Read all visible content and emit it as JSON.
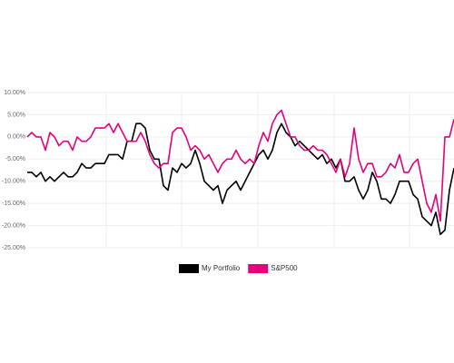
{
  "chart_data": {
    "type": "line",
    "ylim": [
      -25,
      10
    ],
    "yticks": [
      {
        "value": 10,
        "label": "10.00%"
      },
      {
        "value": 5,
        "label": "5.00%"
      },
      {
        "value": 0,
        "label": "0.00%"
      },
      {
        "value": -5,
        "label": "-5.00%"
      },
      {
        "value": -10,
        "label": "-10.00%"
      },
      {
        "value": -15,
        "label": "-15.00%"
      },
      {
        "value": -20,
        "label": "-20.00%"
      },
      {
        "value": -25,
        "label": "-25.00%"
      }
    ],
    "grid": true,
    "legend": "bottom",
    "series": [
      {
        "name": "My Portfolio",
        "color": "#000000",
        "values": [
          -8,
          -8,
          -9,
          -8,
          -10,
          -9,
          -10,
          -9,
          -8,
          -9,
          -9,
          -8,
          -6,
          -7,
          -7,
          -6,
          -6,
          -6,
          -4,
          -4,
          -4,
          -5,
          -1,
          -1,
          3,
          3,
          2,
          -3,
          -5,
          -5,
          -11,
          -12,
          -7,
          -8,
          -6,
          -7,
          -6,
          -3,
          -6,
          -10,
          -11,
          -12,
          -11,
          -15,
          -12,
          -11,
          -10,
          -12,
          -10,
          -8,
          -6,
          -4,
          -3,
          -5,
          -3,
          1,
          3,
          1,
          0,
          -2,
          -1,
          -2,
          -3,
          -4,
          -5,
          -4,
          -6,
          -5,
          -7,
          -5,
          -10,
          -10,
          -9,
          -12,
          -14,
          -12,
          -8,
          -10,
          -14,
          -14,
          -15,
          -13,
          -10,
          -10,
          -10,
          -13,
          -14,
          -18,
          -19,
          -20,
          -17,
          -22,
          -21,
          -12,
          -7
        ]
      },
      {
        "name": "S&P500",
        "color": "#e6007e",
        "values": [
          0,
          1,
          0,
          0,
          -3,
          1,
          0,
          -2,
          -1,
          -1,
          -3,
          0,
          -1,
          -1,
          0,
          2,
          2,
          2,
          3,
          1,
          3,
          1,
          -1,
          -1,
          -1,
          1,
          -1,
          -4,
          -6,
          -7,
          -6,
          -6,
          1,
          2,
          2,
          0,
          -3,
          -2,
          -3,
          -5,
          -4,
          -6,
          -8,
          -6,
          -5,
          -5,
          -3,
          -5,
          -6,
          -5,
          -6,
          -2,
          1,
          -1,
          3,
          5,
          6,
          3,
          0,
          0,
          -2,
          -3,
          -3,
          -2,
          -3,
          -3,
          -4,
          -6,
          -8,
          -5,
          -9,
          -6,
          2,
          -5,
          -8,
          -6,
          -6,
          -9,
          -9,
          -8,
          -6,
          -7,
          -4,
          -8,
          -8,
          -6,
          -5,
          -10,
          -15,
          -17,
          -13,
          -19,
          0,
          0,
          4
        ]
      }
    ]
  }
}
